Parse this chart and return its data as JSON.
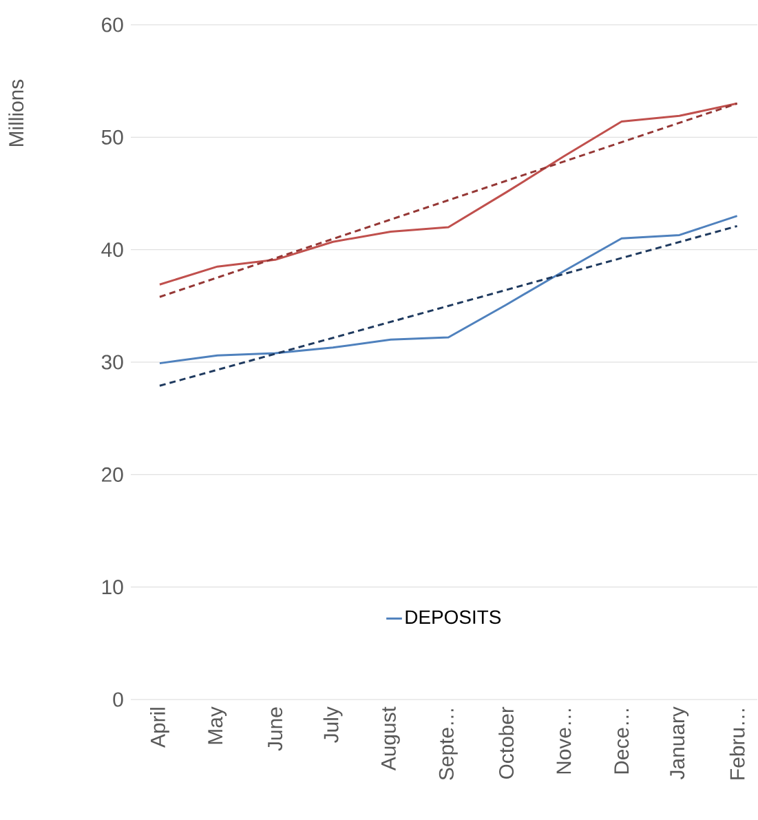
{
  "chart_data": {
    "type": "line",
    "ylabel": "Millions",
    "categories": [
      "April",
      "May",
      "June",
      "July",
      "August",
      "Septe…",
      "October",
      "Nove…",
      "Dece…",
      "January",
      "Febru…"
    ],
    "series": [
      {
        "color": "#c0504d",
        "line_style": "solid",
        "values": [
          36.9,
          38.5,
          39.1,
          40.7,
          41.6,
          42.0,
          45.1,
          48.3,
          51.4,
          51.9,
          53.0
        ]
      },
      {
        "name": "DEPOSITS",
        "color": "#4f81bd",
        "line_style": "solid",
        "values": [
          29.9,
          30.6,
          30.8,
          31.3,
          32.0,
          32.2,
          35.1,
          38.1,
          41.0,
          41.3,
          43.0
        ]
      },
      {
        "color": "#953735",
        "line_style": "dashed",
        "values": [
          35.8,
          null,
          null,
          null,
          null,
          null,
          null,
          null,
          null,
          null,
          53.0
        ]
      },
      {
        "color": "#1f3a5f",
        "line_style": "dashed",
        "values": [
          27.9,
          null,
          null,
          null,
          null,
          null,
          null,
          null,
          null,
          null,
          42.1
        ]
      }
    ],
    "ylim": [
      0,
      60
    ],
    "yticks": [
      0,
      10,
      20,
      30,
      40,
      50,
      60
    ],
    "grid": "y",
    "legend": "bottom"
  }
}
